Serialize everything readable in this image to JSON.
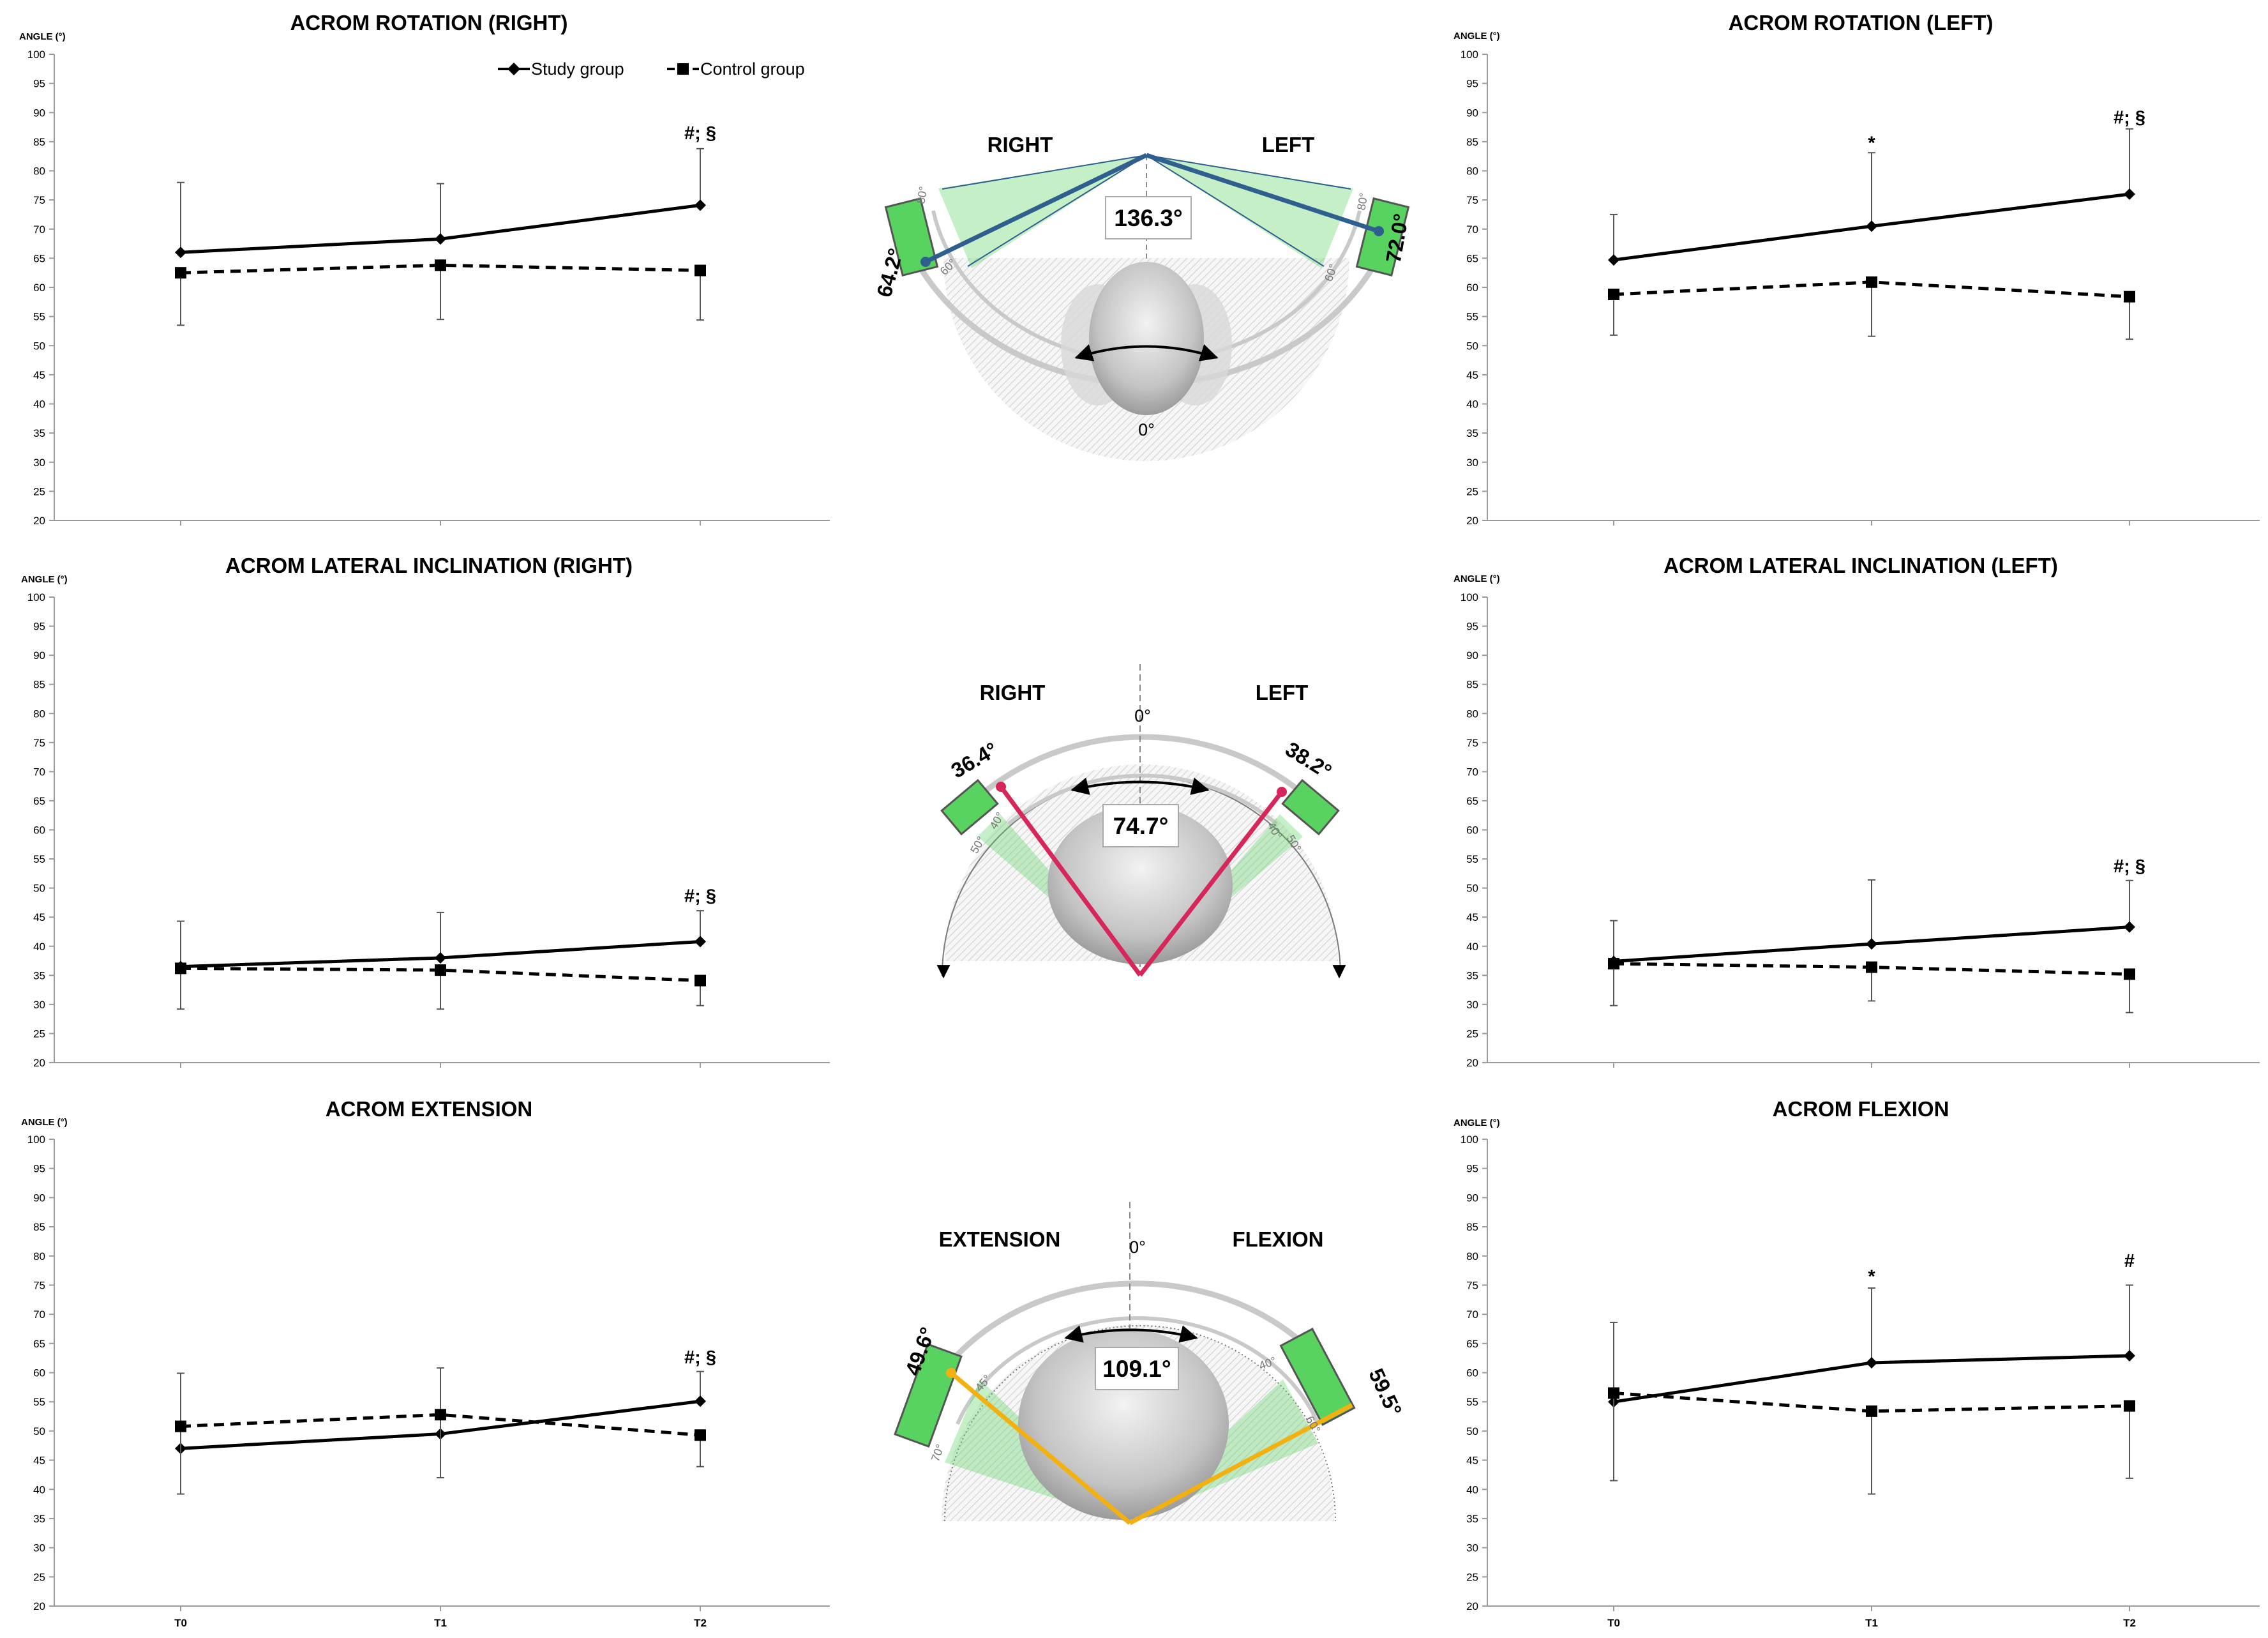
{
  "colors": {
    "study": "#000000",
    "control": "#000000",
    "zone_green": "#58d35f",
    "zone_green_light": "#a9e6ab",
    "rotation_line": "#2e5f8e",
    "inclination_line": "#d6265a",
    "flexion_line": "#f2b111",
    "axis": "#9a9a9a"
  },
  "legend": {
    "study": "Study group",
    "control": "Control group"
  },
  "y_axis_label": "ANGLE (°)",
  "chart_data": [
    {
      "id": "rot_right",
      "type": "line",
      "title": "ACROM ROTATION (RIGHT)",
      "ylabel": "ANGLE (°)",
      "ylim": [
        20,
        100
      ],
      "yticks_step": 5,
      "x": [
        "T0",
        "T1",
        "T2"
      ],
      "show_xticks": false,
      "legend": "top-right",
      "series": [
        {
          "name": "Study group",
          "values": [
            66.0,
            68.3,
            74.1
          ],
          "err": [
            12.0,
            9.5,
            9.7
          ],
          "marker": "diamond",
          "dash": false
        },
        {
          "name": "Control group",
          "values": [
            62.5,
            63.8,
            62.9
          ],
          "err": [
            9.0,
            9.3,
            8.5
          ],
          "marker": "square",
          "dash": true
        }
      ],
      "annotations": [
        {
          "x": "T2",
          "text": "#; §",
          "y": 86.5
        }
      ]
    },
    {
      "id": "rot_left",
      "type": "line",
      "title": "ACROM ROTATION (LEFT)",
      "ylabel": "ANGLE (°)",
      "ylim": [
        20,
        100
      ],
      "yticks_step": 5,
      "x": [
        "T0",
        "T1",
        "T2"
      ],
      "show_xticks": false,
      "series": [
        {
          "name": "Study group",
          "values": [
            64.7,
            70.5,
            76.0
          ],
          "err": [
            7.8,
            12.6,
            11.2
          ],
          "marker": "diamond",
          "dash": false
        },
        {
          "name": "Control group",
          "values": [
            58.8,
            60.9,
            58.4
          ],
          "err": [
            7.0,
            9.3,
            7.3
          ],
          "marker": "square",
          "dash": true
        }
      ],
      "annotations": [
        {
          "x": "T1",
          "text": "*",
          "y": 84.8
        },
        {
          "x": "T2",
          "text": "#; §",
          "y": 89.2
        }
      ]
    },
    {
      "id": "incl_right",
      "type": "line",
      "title": "ACROM LATERAL INCLINATION (RIGHT)",
      "ylabel": "ANGLE (°)",
      "ylim": [
        20,
        100
      ],
      "yticks_step": 5,
      "x": [
        "T0",
        "T1",
        "T2"
      ],
      "show_xticks": false,
      "series": [
        {
          "name": "Study group",
          "values": [
            36.5,
            38.0,
            40.8
          ],
          "err": [
            7.8,
            7.8,
            5.3
          ],
          "marker": "diamond",
          "dash": false
        },
        {
          "name": "Control group",
          "values": [
            36.2,
            35.9,
            34.1
          ],
          "err": [
            7.0,
            6.7,
            4.3
          ],
          "marker": "square",
          "dash": true
        }
      ],
      "annotations": [
        {
          "x": "T2",
          "text": "#; §",
          "y": 48.7
        }
      ]
    },
    {
      "id": "incl_left",
      "type": "line",
      "title": "ACROM LATERAL INCLINATION (LEFT)",
      "ylabel": "ANGLE (°)",
      "ylim": [
        20,
        100
      ],
      "yticks_step": 5,
      "x": [
        "T0",
        "T1",
        "T2"
      ],
      "show_xticks": false,
      "series": [
        {
          "name": "Study group",
          "values": [
            37.4,
            40.4,
            43.3
          ],
          "err": [
            7.0,
            11.0,
            8.0
          ],
          "marker": "diamond",
          "dash": false
        },
        {
          "name": "Control group",
          "values": [
            37.0,
            36.4,
            35.2
          ],
          "err": [
            7.2,
            5.8,
            6.6
          ],
          "marker": "square",
          "dash": true
        }
      ],
      "annotations": [
        {
          "x": "T2",
          "text": "#; §",
          "y": 53.8
        }
      ]
    },
    {
      "id": "extension",
      "type": "line",
      "title": "ACROM EXTENSION",
      "ylabel": "ANGLE (°)",
      "ylim": [
        20,
        100
      ],
      "yticks_step": 5,
      "x": [
        "T0",
        "T1",
        "T2"
      ],
      "show_xticks": true,
      "series": [
        {
          "name": "Study group",
          "values": [
            47.0,
            49.5,
            55.1
          ],
          "err": [
            12.9,
            11.3,
            5.1
          ],
          "marker": "diamond",
          "dash": false
        },
        {
          "name": "Control group",
          "values": [
            50.8,
            52.8,
            49.3
          ],
          "err": [
            11.6,
            10.8,
            5.4
          ],
          "marker": "square",
          "dash": true
        }
      ],
      "annotations": [
        {
          "x": "T2",
          "text": "#; §",
          "y": 62.7
        }
      ]
    },
    {
      "id": "flexion",
      "type": "line",
      "title": "ACROM FLEXION",
      "ylabel": "ANGLE (°)",
      "ylim": [
        20,
        100
      ],
      "yticks_step": 5,
      "x": [
        "T0",
        "T1",
        "T2"
      ],
      "show_xticks": true,
      "series": [
        {
          "name": "Study group",
          "values": [
            55.0,
            61.7,
            62.9
          ],
          "err": [
            13.6,
            12.8,
            12.1
          ],
          "marker": "diamond",
          "dash": false
        },
        {
          "name": "Control group",
          "values": [
            56.5,
            53.4,
            54.3
          ],
          "err": [
            15.0,
            14.2,
            12.4
          ],
          "marker": "square",
          "dash": true
        }
      ],
      "annotations": [
        {
          "x": "T1",
          "text": "*",
          "y": 76.5
        },
        {
          "x": "T2",
          "text": "#",
          "y": 79.2
        }
      ]
    }
  ],
  "diagrams": {
    "rotation": {
      "left_label": "RIGHT",
      "right_label": "LEFT",
      "total": "136.3°",
      "left_value": "64.2°",
      "right_value": "72.0°",
      "zero": "0°",
      "left_angle": 64.2,
      "right_angle": 72.0,
      "zone_min_label": "60°",
      "zone_max_label": "80°",
      "zone_range": [
        60,
        80
      ]
    },
    "inclination": {
      "left_label": "RIGHT",
      "right_label": "LEFT",
      "total": "74.7°",
      "left_value": "36.4°",
      "right_value": "38.2°",
      "zero": "0°",
      "left_angle": 36.4,
      "right_angle": 38.2,
      "zone_min_label": "40°",
      "zone_max_label": "50°",
      "zone_range": [
        40,
        50
      ]
    },
    "flexion": {
      "left_label": "EXTENSION",
      "right_label": "FLEXION",
      "total": "109.1°",
      "left_value": "49.6°",
      "right_value": "59.5°",
      "zero": "0°",
      "left_angle": 49.6,
      "right_angle": 59.5,
      "left_zone_min_label": "45°",
      "left_zone_max_label": "70°",
      "left_zone_range": [
        45,
        70
      ],
      "right_zone_min_label": "40°",
      "right_zone_max_label": "60°",
      "right_zone_range": [
        40,
        60
      ]
    }
  }
}
